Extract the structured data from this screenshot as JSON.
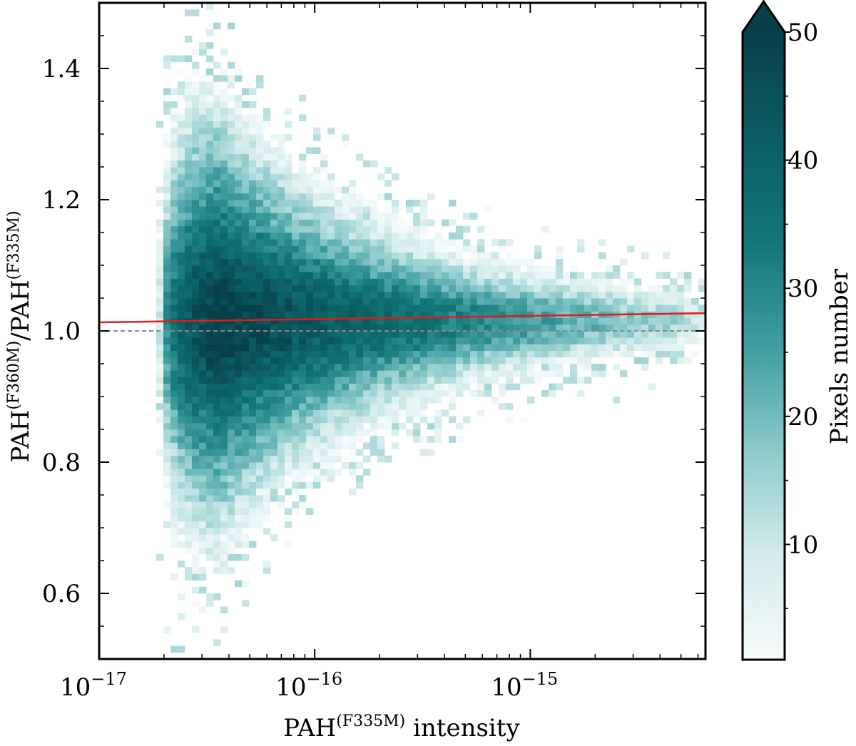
{
  "chart_data": {
    "type": "heatmap",
    "title": "",
    "x_axis": {
      "label_main": "PAH",
      "label_sup": "(F335M)",
      "label_rest": " intensity",
      "scale": "log",
      "range": [
        1e-17,
        6.5e-15
      ],
      "ticks": [
        {
          "value": 1e-17,
          "base": "10",
          "exp": "−17"
        },
        {
          "value": 1e-16,
          "base": "10",
          "exp": "−16"
        },
        {
          "value": 1e-15,
          "base": "10",
          "exp": "−15"
        }
      ]
    },
    "y_axis": {
      "label_parts": [
        "PAH",
        "(F360M)",
        "/PAH",
        "(F335M)"
      ],
      "scale": "linear",
      "range": [
        0.5,
        1.5
      ],
      "ticks": [
        "0.6",
        "0.8",
        "1.0",
        "1.2",
        "1.4"
      ]
    },
    "colorbar": {
      "label": "Pixels number",
      "range": [
        1,
        50
      ],
      "extend": "max",
      "ticks": [
        "10",
        "20",
        "30",
        "40",
        "50"
      ],
      "colors": [
        "#f7fbfb",
        "#d3ebeb",
        "#8ccaca",
        "#3f9d9f",
        "#127676",
        "#0b5d63",
        "#08404a"
      ]
    },
    "reference_line": {
      "y": 1.0,
      "color": "#888888",
      "style": "dashed"
    },
    "fit_line": {
      "color": "#e41a1c",
      "y_at_xmin": 1.013,
      "y_at_xmax": 1.027
    },
    "density_model": {
      "description": "2D histogram of pixel counts; ridge centred near ratio 1.01",
      "x_bins": 85,
      "y_bins": 100,
      "log_x_onset": -16.73,
      "log_x_peak": -16.45,
      "log_x_cutoff": -14.3,
      "ratio_center": 1.015,
      "ratio_spread_at_onset": 0.09,
      "ratio_spread_far": 0.02,
      "peak_count": 55
    }
  }
}
